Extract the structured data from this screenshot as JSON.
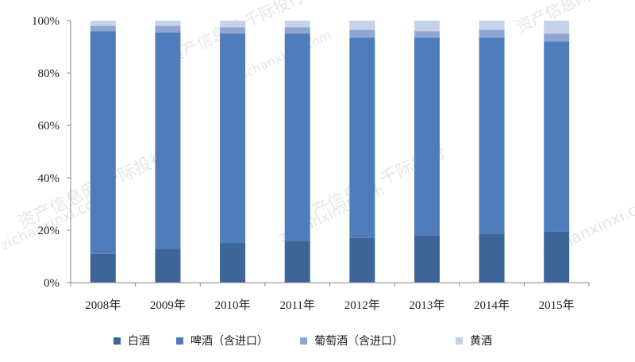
{
  "chart_data": {
    "type": "bar",
    "stacked": true,
    "normalized": true,
    "categories": [
      "2008年",
      "2009年",
      "2010年",
      "2011年",
      "2012年",
      "2013年",
      "2014年",
      "2015年"
    ],
    "series": [
      {
        "name": "白酒",
        "color": "#3d6597",
        "values": [
          11,
          13,
          15,
          16,
          17,
          18,
          18.5,
          19.5
        ]
      },
      {
        "name": "啤酒（含进口）",
        "color": "#4f7cba",
        "values": [
          85,
          82.5,
          80,
          79,
          76.5,
          75.5,
          75,
          72.5
        ]
      },
      {
        "name": "葡萄酒（含进口）",
        "color": "#8ea7d2",
        "values": [
          2,
          2.5,
          2.5,
          2.5,
          3,
          2.5,
          3,
          3
        ]
      },
      {
        "name": "黄酒",
        "color": "#c5d2e9",
        "values": [
          2,
          2,
          2.5,
          2.5,
          3.5,
          4,
          3.5,
          5
        ]
      }
    ],
    "yticks": [
      "0%",
      "20%",
      "40%",
      "60%",
      "80%",
      "100%"
    ],
    "ylim": [
      0,
      100
    ],
    "xlabel": "",
    "ylabel": "",
    "grid": false,
    "legend_position": "bottom"
  },
  "watermarks": [
    {
      "text": "资产信息网 千际投行"
    },
    {
      "text": "zichanxinxi.com"
    },
    {
      "text": "资产信息网 千际投行"
    },
    {
      "text": "zichanxinxi.com"
    },
    {
      "text": "资产信息网 千际投行"
    },
    {
      "text": "zichanxinxi.com"
    },
    {
      "text": "资产信息网"
    },
    {
      "text": "zichanxinxi.com"
    }
  ]
}
